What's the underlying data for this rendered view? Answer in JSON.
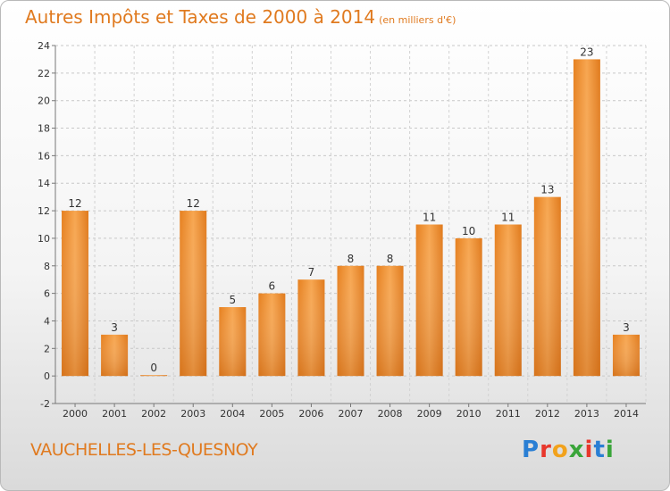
{
  "title": "Autres Impôts et Taxes de 2000 à 2014",
  "subtitle": "(en milliers d'€)",
  "city": "VAUCHELLES-LES-QUESNOY",
  "logo": {
    "text": "Proxiti",
    "colors": [
      "#2a7fd4",
      "#e8372c",
      "#f2a21c",
      "#3aa53a",
      "#e8372c",
      "#2a7fd4",
      "#3aa53a"
    ]
  },
  "colors": {
    "bar": "#f0922e",
    "bar_dark": "#d9731a",
    "title": "#e07a1f"
  },
  "chart_data": {
    "type": "bar",
    "categories": [
      "2000",
      "2001",
      "2002",
      "2003",
      "2004",
      "2005",
      "2006",
      "2007",
      "2008",
      "2009",
      "2010",
      "2011",
      "2012",
      "2013",
      "2014"
    ],
    "values": [
      12,
      3,
      0,
      12,
      5,
      6,
      7,
      8,
      8,
      11,
      10,
      11,
      13,
      23,
      3
    ],
    "ylim": [
      -2,
      24
    ],
    "yticks": [
      -2,
      0,
      2,
      4,
      6,
      8,
      10,
      12,
      14,
      16,
      18,
      20,
      22,
      24
    ],
    "grid": true
  }
}
